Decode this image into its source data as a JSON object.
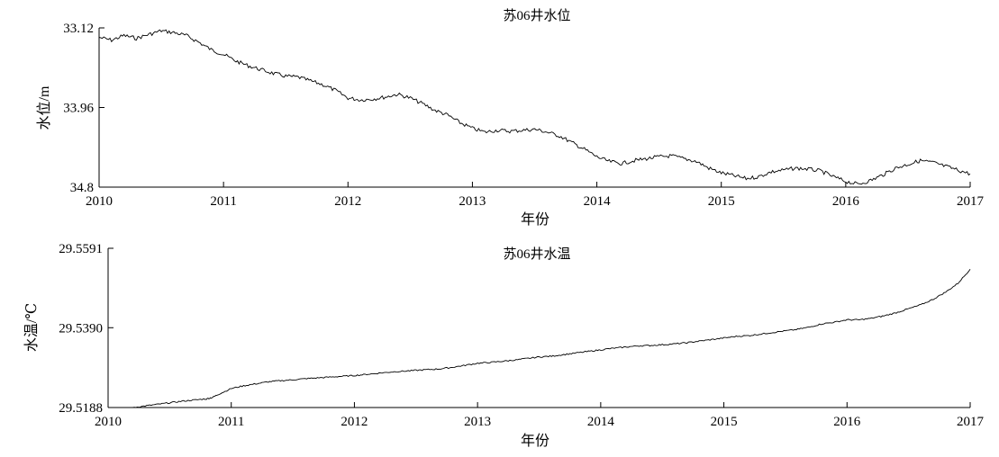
{
  "chart_data": [
    {
      "type": "line",
      "title": "苏06井水位",
      "xlabel": "年份",
      "ylabel": "水位/m",
      "y_inverted": true,
      "xlim": [
        2010,
        2017
      ],
      "ylim": [
        33.12,
        34.8
      ],
      "x_ticks": [
        "2010",
        "2011",
        "2012",
        "2013",
        "2014",
        "2015",
        "2016",
        "2017"
      ],
      "y_ticks": [
        "33.12",
        "33.96",
        "34.8"
      ],
      "series": [
        {
          "x": [
            2010.0,
            2010.1,
            2010.2,
            2010.3,
            2010.4,
            2010.5,
            2010.6,
            2010.7,
            2010.8,
            2010.9,
            2011.0,
            2011.1,
            2011.2,
            2011.3,
            2011.4,
            2011.5,
            2011.6,
            2011.7,
            2011.8,
            2011.9,
            2012.0,
            2012.1,
            2012.2,
            2012.3,
            2012.4,
            2012.5,
            2012.6,
            2012.7,
            2012.8,
            2012.9,
            2013.0,
            2013.1,
            2013.2,
            2013.3,
            2013.4,
            2013.5,
            2013.6,
            2013.7,
            2013.8,
            2013.9,
            2014.0,
            2014.1,
            2014.2,
            2014.3,
            2014.4,
            2014.5,
            2014.6,
            2014.7,
            2014.8,
            2014.9,
            2015.0,
            2015.1,
            2015.2,
            2015.3,
            2015.4,
            2015.5,
            2015.6,
            2015.7,
            2015.8,
            2015.9,
            2016.0,
            2016.1,
            2016.2,
            2016.3,
            2016.4,
            2016.5,
            2016.6,
            2016.7,
            2016.8,
            2016.9,
            2017.0
          ],
          "y": [
            33.22,
            33.25,
            33.2,
            33.23,
            33.19,
            33.15,
            33.17,
            33.2,
            33.27,
            33.35,
            33.4,
            33.47,
            33.52,
            33.56,
            33.6,
            33.63,
            33.64,
            33.68,
            33.72,
            33.78,
            33.86,
            33.88,
            33.87,
            33.85,
            33.82,
            33.86,
            33.92,
            33.99,
            34.04,
            34.12,
            34.18,
            34.22,
            34.2,
            34.21,
            34.2,
            34.19,
            34.22,
            34.26,
            34.33,
            34.4,
            34.48,
            34.53,
            34.55,
            34.52,
            34.5,
            34.48,
            34.47,
            34.5,
            34.53,
            34.6,
            34.65,
            34.68,
            34.71,
            34.69,
            34.64,
            34.62,
            34.6,
            34.61,
            34.63,
            34.69,
            34.74,
            34.77,
            34.73,
            34.67,
            34.6,
            34.56,
            34.52,
            34.54,
            34.58,
            34.62,
            34.66
          ]
        }
      ]
    },
    {
      "type": "line",
      "title": "苏06井水温",
      "xlabel": "年份",
      "ylabel": "水温/℃",
      "xlim": [
        2010,
        2017
      ],
      "ylim": [
        29.5188,
        29.5591
      ],
      "x_ticks": [
        "2010",
        "2011",
        "2012",
        "2013",
        "2014",
        "2015",
        "2016",
        "2017"
      ],
      "y_ticks": [
        "29.5591",
        "29.5390",
        "29.5188"
      ],
      "series": [
        {
          "x": [
            2010.2,
            2010.3,
            2010.4,
            2010.5,
            2010.6,
            2010.7,
            2010.8,
            2010.85,
            2010.9,
            2011.0,
            2011.1,
            2011.2,
            2011.3,
            2011.4,
            2011.5,
            2011.6,
            2011.7,
            2011.8,
            2011.9,
            2012.0,
            2012.1,
            2012.2,
            2012.3,
            2012.4,
            2012.5,
            2012.6,
            2012.7,
            2012.8,
            2012.9,
            2013.0,
            2013.1,
            2013.2,
            2013.3,
            2013.4,
            2013.5,
            2013.6,
            2013.7,
            2013.8,
            2013.9,
            2014.0,
            2014.1,
            2014.2,
            2014.3,
            2014.4,
            2014.5,
            2014.6,
            2014.7,
            2014.8,
            2014.9,
            2015.0,
            2015.1,
            2015.2,
            2015.3,
            2015.4,
            2015.5,
            2015.6,
            2015.7,
            2015.8,
            2015.9,
            2016.0,
            2016.1,
            2016.2,
            2016.3,
            2016.4,
            2016.5,
            2016.6,
            2016.7,
            2016.8,
            2016.9,
            2017.0
          ],
          "y": [
            29.5188,
            29.5192,
            29.5196,
            29.52,
            29.5204,
            29.5207,
            29.521,
            29.5214,
            29.5222,
            29.5236,
            29.5243,
            29.5248,
            29.5253,
            29.5256,
            29.5258,
            29.5261,
            29.5263,
            29.5265,
            29.5267,
            29.5269,
            29.5272,
            29.5275,
            29.5278,
            29.528,
            29.5282,
            29.5284,
            29.5286,
            29.529,
            29.5295,
            29.53,
            29.5302,
            29.5305,
            29.5308,
            29.5312,
            29.5316,
            29.5318,
            29.5322,
            29.5326,
            29.533,
            29.5334,
            29.5338,
            29.5341,
            29.5344,
            29.5345,
            29.5347,
            29.5349,
            29.5352,
            29.5356,
            29.536,
            29.5364,
            29.5368,
            29.537,
            29.5374,
            29.5378,
            29.5382,
            29.5386,
            29.5392,
            29.54,
            29.5404,
            29.541,
            29.541,
            29.5414,
            29.542,
            29.5428,
            29.5438,
            29.5448,
            29.5462,
            29.548,
            29.5502,
            29.5538
          ]
        }
      ]
    }
  ]
}
